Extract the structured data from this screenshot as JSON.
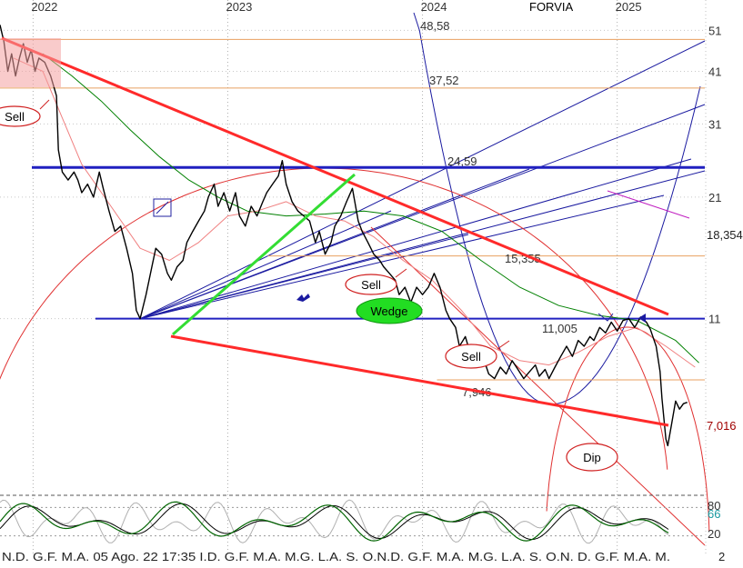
{
  "chart_data": {
    "type": "line",
    "title": "FORVIA",
    "years": [
      {
        "label": "2022",
        "x": 2022.0
      },
      {
        "label": "2023",
        "x": 2023.0
      },
      {
        "label": "2024",
        "x": 2024.0
      },
      {
        "label": "2025",
        "x": 2025.0
      }
    ],
    "x_range": [
      2021.83,
      2025.45
    ],
    "y_axis": {
      "scale": "log",
      "range": [
        4.3,
        56
      ],
      "ticks": [
        "51",
        "41",
        "31",
        "21",
        "11"
      ]
    },
    "price_series": {
      "name": "",
      "points": [
        [
          2021.83,
          52.5
        ],
        [
          2021.85,
          48
        ],
        [
          2021.87,
          41
        ],
        [
          2021.89,
          45
        ],
        [
          2021.91,
          40
        ],
        [
          2021.93,
          44
        ],
        [
          2021.95,
          47.5
        ],
        [
          2021.97,
          43
        ],
        [
          2021.99,
          46
        ],
        [
          2022.01,
          41
        ],
        [
          2022.03,
          44
        ],
        [
          2022.06,
          43
        ],
        [
          2022.09,
          40
        ],
        [
          2022.12,
          36
        ],
        [
          2022.13,
          27
        ],
        [
          2022.15,
          24
        ],
        [
          2022.18,
          23
        ],
        [
          2022.21,
          24
        ],
        [
          2022.23,
          23
        ],
        [
          2022.25,
          21.5
        ],
        [
          2022.28,
          22.5
        ],
        [
          2022.31,
          21
        ],
        [
          2022.34,
          24
        ],
        [
          2022.36,
          22
        ],
        [
          2022.39,
          19.5
        ],
        [
          2022.42,
          17.5
        ],
        [
          2022.45,
          18
        ],
        [
          2022.48,
          16
        ],
        [
          2022.51,
          14
        ],
        [
          2022.53,
          11.5
        ],
        [
          2022.55,
          11
        ],
        [
          2022.58,
          12.5
        ],
        [
          2022.61,
          14.5
        ],
        [
          2022.63,
          16
        ],
        [
          2022.66,
          15.5
        ],
        [
          2022.69,
          14
        ],
        [
          2022.71,
          13.5
        ],
        [
          2022.74,
          14.5
        ],
        [
          2022.77,
          15
        ],
        [
          2022.79,
          16.5
        ],
        [
          2022.82,
          17.5
        ],
        [
          2022.85,
          18.5
        ],
        [
          2022.88,
          19.5
        ],
        [
          2022.9,
          21
        ],
        [
          2022.93,
          22.5
        ],
        [
          2022.95,
          20
        ],
        [
          2022.98,
          21.5
        ],
        [
          2023.01,
          19.5
        ],
        [
          2023.04,
          21.5
        ],
        [
          2023.06,
          19
        ],
        [
          2023.09,
          18
        ],
        [
          2023.12,
          20
        ],
        [
          2023.15,
          19
        ],
        [
          2023.18,
          20.5
        ],
        [
          2023.2,
          21.5
        ],
        [
          2023.23,
          22.5
        ],
        [
          2023.26,
          23.5
        ],
        [
          2023.28,
          25.5
        ],
        [
          2023.3,
          22.5
        ],
        [
          2023.33,
          20.5
        ],
        [
          2023.36,
          19.5
        ],
        [
          2023.39,
          19
        ],
        [
          2023.42,
          18.5
        ],
        [
          2023.45,
          16.5
        ],
        [
          2023.47,
          17.5
        ],
        [
          2023.5,
          15.5
        ],
        [
          2023.53,
          16.5
        ],
        [
          2023.55,
          18
        ],
        [
          2023.58,
          19
        ],
        [
          2023.61,
          20.5
        ],
        [
          2023.64,
          22
        ],
        [
          2023.67,
          18.5
        ],
        [
          2023.69,
          17.5
        ],
        [
          2023.72,
          16.5
        ],
        [
          2023.75,
          15.5
        ],
        [
          2023.78,
          15
        ],
        [
          2023.8,
          14.5
        ],
        [
          2023.83,
          14
        ],
        [
          2023.86,
          13.5
        ],
        [
          2023.88,
          12.5
        ],
        [
          2023.91,
          13
        ],
        [
          2023.94,
          12
        ],
        [
          2023.97,
          13
        ],
        [
          2024.0,
          12.5
        ],
        [
          2024.03,
          13
        ],
        [
          2024.06,
          14
        ],
        [
          2024.09,
          13
        ],
        [
          2024.12,
          11.5
        ],
        [
          2024.14,
          11
        ],
        [
          2024.17,
          10.5
        ],
        [
          2024.19,
          9.5
        ],
        [
          2024.22,
          10
        ],
        [
          2024.25,
          9
        ],
        [
          2024.28,
          8.5
        ],
        [
          2024.31,
          9
        ],
        [
          2024.34,
          8.2
        ],
        [
          2024.37,
          8
        ],
        [
          2024.4,
          8.5
        ],
        [
          2024.43,
          8.2
        ],
        [
          2024.46,
          8.8
        ],
        [
          2024.49,
          8.4
        ],
        [
          2024.52,
          8
        ],
        [
          2024.55,
          8.3
        ],
        [
          2024.58,
          8.6
        ],
        [
          2024.6,
          8.1
        ],
        [
          2024.63,
          8.4
        ],
        [
          2024.65,
          8
        ],
        [
          2024.68,
          8.5
        ],
        [
          2024.71,
          9
        ],
        [
          2024.74,
          9.5
        ],
        [
          2024.77,
          9
        ],
        [
          2024.8,
          9.8
        ],
        [
          2024.83,
          9.5
        ],
        [
          2024.86,
          10
        ],
        [
          2024.88,
          9.8
        ],
        [
          2024.91,
          10.5
        ],
        [
          2024.94,
          10.2
        ],
        [
          2024.97,
          10.8
        ],
        [
          2025.0,
          10.3
        ],
        [
          2025.03,
          10.9
        ],
        [
          2025.06,
          11
        ],
        [
          2025.09,
          10.5
        ],
        [
          2025.12,
          11.1
        ],
        [
          2025.15,
          10.8
        ],
        [
          2025.17,
          10.4
        ],
        [
          2025.2,
          9.5
        ],
        [
          2025.22,
          8.3
        ],
        [
          2025.23,
          7.2
        ],
        [
          2025.25,
          5.8
        ],
        [
          2025.26,
          5.6
        ],
        [
          2025.28,
          6.3
        ],
        [
          2025.3,
          7.1
        ],
        [
          2025.32,
          6.8
        ],
        [
          2025.34,
          7.0
        ],
        [
          2025.36,
          7.05
        ]
      ]
    },
    "moving_averages": [
      {
        "name": "",
        "color": "#008000",
        "points": [
          [
            2022.05,
            45
          ],
          [
            2022.2,
            40
          ],
          [
            2022.35,
            35
          ],
          [
            2022.5,
            30
          ],
          [
            2022.65,
            26
          ],
          [
            2022.8,
            23
          ],
          [
            2022.95,
            21
          ],
          [
            2023.1,
            19.5
          ],
          [
            2023.3,
            19
          ],
          [
            2023.5,
            19.2
          ],
          [
            2023.7,
            19.5
          ],
          [
            2023.9,
            19
          ],
          [
            2024.1,
            17.5
          ],
          [
            2024.3,
            15
          ],
          [
            2024.5,
            13
          ],
          [
            2024.7,
            11.8
          ],
          [
            2024.9,
            11.2
          ],
          [
            2025.1,
            10.9
          ],
          [
            2025.3,
            9.8
          ],
          [
            2025.42,
            8.7
          ]
        ]
      },
      {
        "name": "",
        "color": "#f08080",
        "points": [
          [
            2021.9,
            44
          ],
          [
            2022.05,
            41
          ],
          [
            2022.15,
            32
          ],
          [
            2022.25,
            25
          ],
          [
            2022.4,
            20
          ],
          [
            2022.55,
            16
          ],
          [
            2022.7,
            15
          ],
          [
            2022.85,
            16.5
          ],
          [
            2023.0,
            19
          ],
          [
            2023.15,
            19.5
          ],
          [
            2023.3,
            20.5
          ],
          [
            2023.45,
            19
          ],
          [
            2023.6,
            18.5
          ],
          [
            2023.75,
            17
          ],
          [
            2023.9,
            15
          ],
          [
            2024.05,
            13.5
          ],
          [
            2024.2,
            11.5
          ],
          [
            2024.35,
            9.5
          ],
          [
            2024.5,
            8.8
          ],
          [
            2024.65,
            8.6
          ],
          [
            2024.8,
            9.2
          ],
          [
            2024.95,
            10
          ],
          [
            2025.1,
            10.5
          ],
          [
            2025.25,
            9.5
          ],
          [
            2025.4,
            8.5
          ]
        ]
      }
    ],
    "price_levels": [
      {
        "label": "48,58",
        "value": 48.58
      },
      {
        "label": "37,52",
        "value": 37.52
      },
      {
        "label": "24,59",
        "value": 24.59
      },
      {
        "label": "15,355",
        "value": 15.355
      },
      {
        "label": "11,005",
        "value": 11.005
      },
      {
        "label": "7,946",
        "value": 7.946
      }
    ],
    "right_labels": [
      {
        "label": "18,354",
        "value": 18.354
      },
      {
        "label": "7,016",
        "value": 7.016
      }
    ],
    "annotations": [
      {
        "label": "Sell",
        "kind": "sell"
      },
      {
        "label": "Sell",
        "kind": "sell"
      },
      {
        "label": "Sell",
        "kind": "sell"
      },
      {
        "label": "Wedge",
        "kind": "wedge"
      },
      {
        "label": "Dip",
        "kind": "dip"
      }
    ],
    "oscillator": {
      "name": "",
      "ticks": [
        "80",
        "66",
        "20"
      ],
      "current_value": "66",
      "line_color": "#006400",
      "signal_color": "#000000"
    },
    "month_axis": {
      "labels": "N.D. G.F. M.A.  05 Ago. 22 17:35  I.D. G.F. M.A. M.G. L.A. S. O.N.D. G.F. M.A. M.G. L.A. S. O.N. D. G.F. M.A. M.",
      "end_mark": "2"
    },
    "colors": {
      "trendline": "#ff2a2a",
      "support": "#2020c0",
      "fan": "#1a1aa0",
      "level": "#e8a060",
      "green_trend": "#33dd33"
    }
  }
}
